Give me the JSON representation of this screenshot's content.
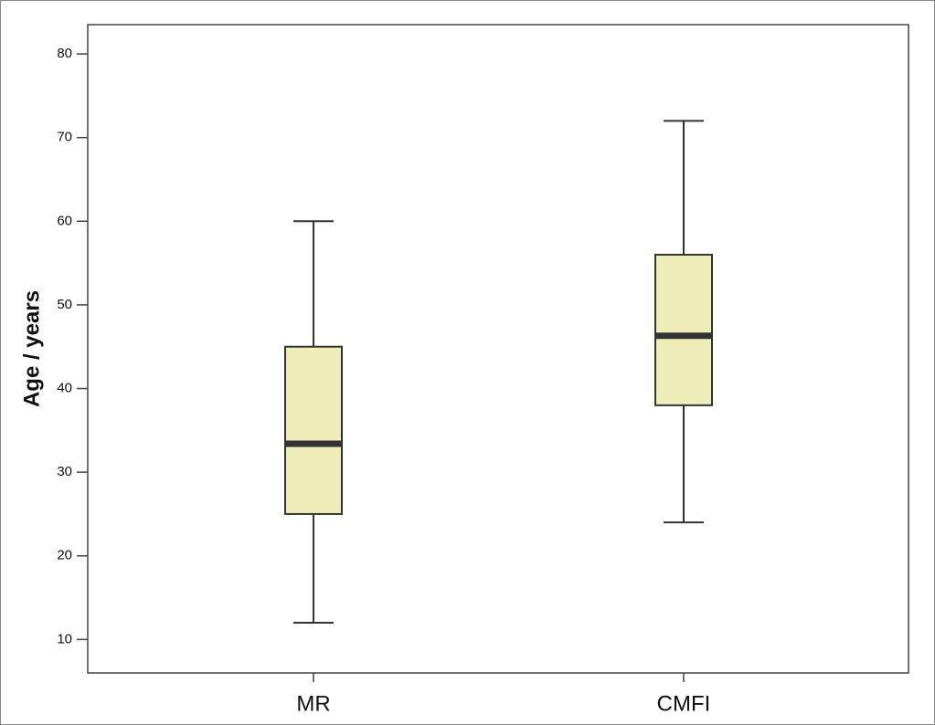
{
  "chart_data": {
    "type": "box",
    "y_label": "Age / years",
    "categories": [
      "MR",
      "CMFI"
    ],
    "boxes": [
      {
        "min": 12,
        "q1": 25,
        "median": 33.4,
        "q3": 45,
        "max": 60
      },
      {
        "min": 24,
        "q1": 38,
        "median": 46.3,
        "q3": 56,
        "max": 72
      }
    ],
    "color": "#eeeebb",
    "ylim": [
      6,
      83.5
    ],
    "yticks": [
      10,
      20,
      30,
      40,
      50,
      60,
      70,
      80
    ]
  }
}
